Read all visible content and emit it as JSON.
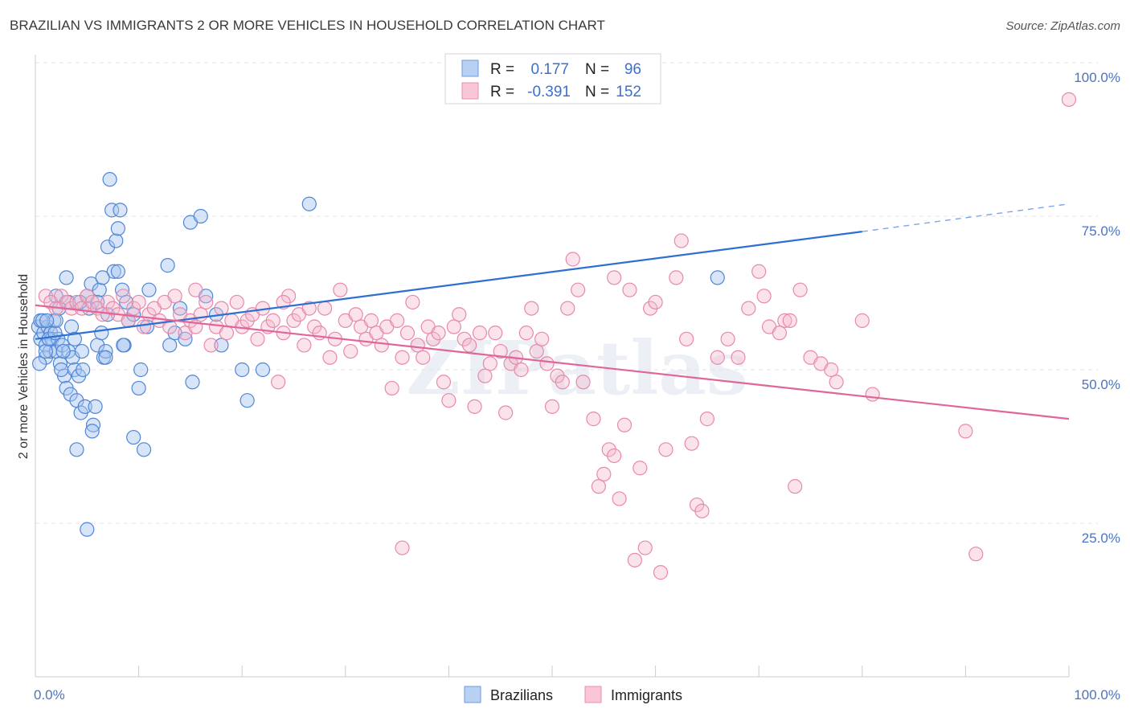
{
  "title": "BRAZILIAN VS IMMIGRANTS 2 OR MORE VEHICLES IN HOUSEHOLD CORRELATION CHART",
  "source": "Source: ZipAtlas.com",
  "colors": {
    "blue": "#4a86d8",
    "blue_fill": "#a9c6ef",
    "pink": "#e8749e",
    "pink_fill": "#f4b8cc"
  },
  "chart_data": {
    "type": "scatter",
    "ylabel": "2 or more Vehicles in Household",
    "x_range": [
      0,
      100
    ],
    "y_range": [
      0,
      100
    ],
    "x_ticks": [
      "0.0%",
      "100.0%"
    ],
    "y_ticks": [
      {
        "value": 100,
        "label": "100.0%"
      },
      {
        "value": 75,
        "label": "75.0%"
      },
      {
        "value": 50,
        "label": "50.0%"
      },
      {
        "value": 25,
        "label": "25.0%"
      }
    ],
    "legend": [
      {
        "series": "Brazilians",
        "r_label": "R =",
        "r": "0.177",
        "n_label": "N =",
        "n": "96"
      },
      {
        "series": "Immigrants",
        "r_label": "R =",
        "r": "-0.391",
        "n_label": "N =",
        "n": "152"
      }
    ],
    "watermark": "ZIPatlas",
    "series": [
      {
        "name": "Brazilians",
        "trend": {
          "x0": 0,
          "y0": 55,
          "x1": 80,
          "y1": 72.5,
          "dash_to_x": 100,
          "dash_to_y": 77
        },
        "points": [
          [
            0.3,
            57
          ],
          [
            0.5,
            55
          ],
          [
            0.5,
            58
          ],
          [
            0.8,
            56
          ],
          [
            1.0,
            54
          ],
          [
            1.0,
            52
          ],
          [
            1.2,
            57
          ],
          [
            1.4,
            53
          ],
          [
            1.5,
            56
          ],
          [
            1.6,
            55
          ],
          [
            1.8,
            58
          ],
          [
            2.0,
            53
          ],
          [
            2.2,
            55
          ],
          [
            2.4,
            51
          ],
          [
            2.6,
            54
          ],
          [
            2.8,
            49
          ],
          [
            3.0,
            47
          ],
          [
            3.2,
            53
          ],
          [
            3.4,
            46
          ],
          [
            3.6,
            52
          ],
          [
            3.8,
            50
          ],
          [
            4.0,
            45
          ],
          [
            4.2,
            49
          ],
          [
            4.4,
            43
          ],
          [
            4.6,
            50
          ],
          [
            4.8,
            44
          ],
          [
            5.0,
            62
          ],
          [
            5.2,
            60
          ],
          [
            5.4,
            64
          ],
          [
            5.6,
            41
          ],
          [
            5.8,
            44
          ],
          [
            6.0,
            54
          ],
          [
            6.2,
            63
          ],
          [
            6.4,
            56
          ],
          [
            6.6,
            52
          ],
          [
            6.8,
            53
          ],
          [
            7.0,
            70
          ],
          [
            7.2,
            81
          ],
          [
            7.4,
            76
          ],
          [
            7.6,
            66
          ],
          [
            7.8,
            71
          ],
          [
            8.0,
            73
          ],
          [
            8.2,
            76
          ],
          [
            8.4,
            63
          ],
          [
            8.6,
            54
          ],
          [
            8.8,
            61
          ],
          [
            9.0,
            58
          ],
          [
            9.5,
            39
          ],
          [
            10.0,
            47
          ],
          [
            10.2,
            50
          ],
          [
            10.5,
            37
          ],
          [
            5.0,
            24
          ],
          [
            12.8,
            67
          ],
          [
            13.0,
            54
          ],
          [
            13.5,
            56
          ],
          [
            14.0,
            60
          ],
          [
            14.5,
            55
          ],
          [
            15.0,
            74
          ],
          [
            15.2,
            48
          ],
          [
            16.0,
            75
          ],
          [
            16.5,
            62
          ],
          [
            17.5,
            59
          ],
          [
            18.0,
            54
          ],
          [
            20.0,
            50
          ],
          [
            20.5,
            45
          ],
          [
            22.0,
            50
          ],
          [
            26.5,
            77
          ],
          [
            66.0,
            65
          ],
          [
            3.0,
            65
          ],
          [
            3.2,
            61
          ],
          [
            2.0,
            62
          ],
          [
            2.3,
            60
          ],
          [
            1.0,
            53
          ],
          [
            1.3,
            55
          ],
          [
            0.7,
            58
          ],
          [
            4.0,
            37
          ],
          [
            4.5,
            53
          ],
          [
            6.0,
            61
          ],
          [
            8.5,
            54
          ],
          [
            5.5,
            40
          ],
          [
            3.5,
            57
          ],
          [
            2.7,
            53
          ],
          [
            1.9,
            56
          ],
          [
            0.4,
            51
          ],
          [
            9.5,
            59
          ],
          [
            11.0,
            63
          ],
          [
            7.0,
            59
          ],
          [
            6.5,
            65
          ],
          [
            2.0,
            58
          ],
          [
            3.8,
            55
          ],
          [
            4.3,
            61
          ],
          [
            8.0,
            66
          ],
          [
            10.8,
            57
          ],
          [
            1.1,
            58
          ],
          [
            2.5,
            50
          ],
          [
            6.8,
            52
          ]
        ]
      },
      {
        "name": "Immigrants",
        "trend": {
          "x0": 0,
          "y0": 60.5,
          "x1": 100,
          "y1": 42
        },
        "points": [
          [
            1.0,
            62
          ],
          [
            1.5,
            61
          ],
          [
            2.0,
            60
          ],
          [
            2.5,
            62
          ],
          [
            3.0,
            61
          ],
          [
            3.5,
            60
          ],
          [
            4.0,
            61
          ],
          [
            4.5,
            60
          ],
          [
            5.0,
            62
          ],
          [
            5.5,
            61
          ],
          [
            6.0,
            60
          ],
          [
            6.5,
            59
          ],
          [
            7.0,
            61
          ],
          [
            7.5,
            60
          ],
          [
            8.0,
            59
          ],
          [
            8.5,
            62
          ],
          [
            9.0,
            58
          ],
          [
            9.5,
            60
          ],
          [
            10.0,
            61
          ],
          [
            10.5,
            57
          ],
          [
            11.0,
            59
          ],
          [
            11.5,
            60
          ],
          [
            12.0,
            58
          ],
          [
            12.5,
            61
          ],
          [
            13.0,
            57
          ],
          [
            13.5,
            62
          ],
          [
            14.0,
            59
          ],
          [
            14.5,
            56
          ],
          [
            15.0,
            58
          ],
          [
            15.5,
            57
          ],
          [
            16.0,
            59
          ],
          [
            16.5,
            61
          ],
          [
            17.0,
            54
          ],
          [
            17.5,
            57
          ],
          [
            18.0,
            60
          ],
          [
            18.5,
            56
          ],
          [
            19.0,
            58
          ],
          [
            19.5,
            61
          ],
          [
            20.0,
            57
          ],
          [
            20.5,
            58
          ],
          [
            21.0,
            59
          ],
          [
            21.5,
            55
          ],
          [
            22.0,
            60
          ],
          [
            22.5,
            57
          ],
          [
            23.0,
            58
          ],
          [
            23.5,
            48
          ],
          [
            24.0,
            56
          ],
          [
            24.5,
            62
          ],
          [
            25.0,
            58
          ],
          [
            25.5,
            59
          ],
          [
            26.0,
            54
          ],
          [
            26.5,
            60
          ],
          [
            27.0,
            57
          ],
          [
            27.5,
            56
          ],
          [
            28.0,
            60
          ],
          [
            28.5,
            52
          ],
          [
            29.0,
            55
          ],
          [
            29.5,
            63
          ],
          [
            30.0,
            58
          ],
          [
            30.5,
            53
          ],
          [
            31.0,
            59
          ],
          [
            31.5,
            57
          ],
          [
            32.0,
            55
          ],
          [
            32.5,
            58
          ],
          [
            33.0,
            56
          ],
          [
            33.5,
            54
          ],
          [
            34.0,
            57
          ],
          [
            34.5,
            47
          ],
          [
            35.0,
            58
          ],
          [
            35.5,
            52
          ],
          [
            36.0,
            56
          ],
          [
            36.5,
            61
          ],
          [
            37.0,
            54
          ],
          [
            37.5,
            52
          ],
          [
            38.0,
            57
          ],
          [
            38.5,
            55
          ],
          [
            39.0,
            56
          ],
          [
            39.5,
            48
          ],
          [
            40.0,
            45
          ],
          [
            40.5,
            57
          ],
          [
            41.0,
            59
          ],
          [
            41.5,
            55
          ],
          [
            42.0,
            54
          ],
          [
            42.5,
            44
          ],
          [
            43.0,
            56
          ],
          [
            43.5,
            49
          ],
          [
            44.0,
            51
          ],
          [
            44.5,
            56
          ],
          [
            45.0,
            53
          ],
          [
            45.5,
            43
          ],
          [
            46.0,
            51
          ],
          [
            46.5,
            52
          ],
          [
            47.0,
            50
          ],
          [
            47.5,
            56
          ],
          [
            48.0,
            60
          ],
          [
            48.5,
            53
          ],
          [
            49.0,
            55
          ],
          [
            49.5,
            51
          ],
          [
            50.0,
            44
          ],
          [
            50.5,
            49
          ],
          [
            51.0,
            48
          ],
          [
            51.5,
            60
          ],
          [
            52.0,
            68
          ],
          [
            52.5,
            63
          ],
          [
            53.0,
            48
          ],
          [
            54.0,
            42
          ],
          [
            54.5,
            31
          ],
          [
            55.0,
            33
          ],
          [
            55.5,
            37
          ],
          [
            56.0,
            36
          ],
          [
            56.5,
            29
          ],
          [
            57.0,
            41
          ],
          [
            57.5,
            63
          ],
          [
            58.0,
            19
          ],
          [
            58.5,
            34
          ],
          [
            59.0,
            21
          ],
          [
            59.5,
            60
          ],
          [
            60.0,
            61
          ],
          [
            60.5,
            17
          ],
          [
            61.0,
            37
          ],
          [
            62.0,
            65
          ],
          [
            62.5,
            71
          ],
          [
            63.0,
            55
          ],
          [
            63.5,
            38
          ],
          [
            64.0,
            28
          ],
          [
            64.5,
            27
          ],
          [
            65.0,
            42
          ],
          [
            66.0,
            52
          ],
          [
            67.0,
            55
          ],
          [
            68.0,
            52
          ],
          [
            69.0,
            60
          ],
          [
            70.0,
            66
          ],
          [
            70.5,
            62
          ],
          [
            71.0,
            57
          ],
          [
            72.0,
            56
          ],
          [
            72.5,
            58
          ],
          [
            73.0,
            58
          ],
          [
            74.0,
            63
          ],
          [
            75.0,
            52
          ],
          [
            76.0,
            51
          ],
          [
            77.0,
            50
          ],
          [
            77.5,
            48
          ],
          [
            80.0,
            58
          ],
          [
            81.0,
            46
          ],
          [
            90.0,
            40
          ],
          [
            91.0,
            20
          ],
          [
            100.0,
            94
          ],
          [
            35.5,
            21
          ],
          [
            73.5,
            31
          ],
          [
            56.0,
            65
          ],
          [
            24.0,
            61
          ],
          [
            15.5,
            63
          ]
        ]
      }
    ]
  }
}
